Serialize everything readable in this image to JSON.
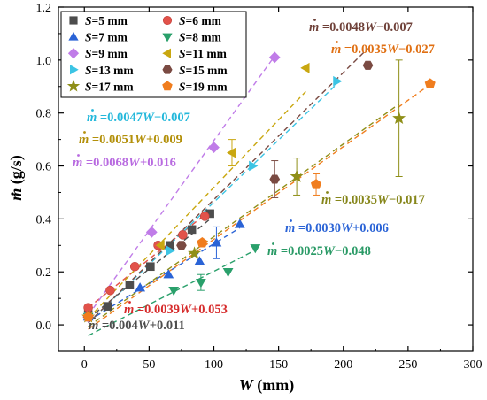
{
  "chart_data": {
    "type": "scatter",
    "xlabel_symbol": "W",
    "xlabel_unit": "(mm)",
    "ylabel_symbol": "m",
    "ylabel_unit": "(g/s)",
    "xlim": [
      -20,
      300
    ],
    "ylim": [
      -0.1,
      1.2
    ],
    "xticks": [
      0,
      50,
      100,
      150,
      200,
      250,
      300
    ],
    "yticks": [
      0.0,
      0.2,
      0.4,
      0.6,
      0.8,
      1.0,
      1.2
    ],
    "grid": false,
    "legend_position": "top-left",
    "series": [
      {
        "name": "S=5 mm",
        "label_prefix": "S",
        "label_suffix": "=5 mm",
        "marker": "square",
        "color": "#4d4d4d",
        "x": [
          3,
          18,
          35,
          51,
          66,
          83,
          97
        ],
        "y": [
          0.04,
          0.07,
          0.15,
          0.22,
          0.3,
          0.36,
          0.42
        ],
        "fit": {
          "slope": 0.004,
          "intercept": 0.011,
          "label": "=0.004W+0.011",
          "color": "#4d4d4d"
        }
      },
      {
        "name": "S=6 mm",
        "label_prefix": "S",
        "label_suffix": "=6 mm",
        "marker": "circle",
        "color": "#e2524a",
        "x": [
          3,
          20,
          39,
          57,
          76,
          93
        ],
        "y": [
          0.065,
          0.13,
          0.22,
          0.3,
          0.34,
          0.41
        ],
        "fit": {
          "slope": 0.0039,
          "intercept": 0.053,
          "label": "=0.0039W+0.053",
          "color": "#d62b2b"
        }
      },
      {
        "name": "S=7 mm",
        "label_prefix": "S",
        "label_suffix": "=7 mm",
        "marker": "triangle-up",
        "color": "#2a63d6",
        "x": [
          3,
          43,
          65,
          89,
          102,
          120
        ],
        "y": [
          0.03,
          0.14,
          0.19,
          0.24,
          0.31,
          0.38
        ],
        "yerr": [
          0,
          0,
          0,
          0,
          0.06,
          0
        ],
        "fit": {
          "slope": 0.003,
          "intercept": 0.006,
          "label": "=0.0030W+0.006",
          "color": "#2a63d6"
        }
      },
      {
        "name": "S=8 mm",
        "label_prefix": "S",
        "label_suffix": "=8 mm",
        "marker": "triangle-down",
        "color": "#2aa06b",
        "x": [
          3,
          69,
          90,
          111,
          132
        ],
        "y": [
          0.03,
          0.13,
          0.16,
          0.2,
          0.29
        ],
        "yerr": [
          0,
          0,
          0.03,
          0,
          0
        ],
        "fit": {
          "slope": 0.0025,
          "intercept": -0.048,
          "label": "=0.0025W−0.048",
          "color": "#2a9a66"
        }
      },
      {
        "name": "S=9 mm",
        "label_prefix": "S",
        "label_suffix": "=9 mm",
        "marker": "diamond",
        "color": "#c07ce8",
        "x": [
          3,
          52,
          100,
          147
        ],
        "y": [
          0.03,
          0.35,
          0.67,
          1.01
        ],
        "fit": {
          "slope": 0.0068,
          "intercept": 0.016,
          "label": "=0.0068W+0.016",
          "color": "#b86ae0"
        }
      },
      {
        "name": "S=11 mm",
        "label_prefix": "S",
        "label_suffix": "=11 mm",
        "marker": "triangle-left",
        "color": "#c9a710",
        "x": [
          3,
          59,
          114,
          171
        ],
        "y": [
          0.03,
          0.3,
          0.65,
          0.97
        ],
        "yerr": [
          0,
          0,
          0.05,
          0
        ],
        "fit": {
          "slope": 0.0051,
          "intercept": 0.009,
          "label": "=0.0051W+0.009",
          "color": "#b3900a"
        }
      },
      {
        "name": "S=13 mm",
        "label_prefix": "S",
        "label_suffix": "=13 mm",
        "marker": "triangle-right",
        "color": "#3cc4e4",
        "x": [
          3,
          66,
          130,
          195
        ],
        "y": [
          0.03,
          0.28,
          0.6,
          0.92
        ],
        "fit": {
          "slope": 0.0047,
          "intercept": -0.007,
          "label": "=0.0047W−0.007",
          "color": "#23b8db"
        }
      },
      {
        "name": "S=15 mm",
        "label_prefix": "S",
        "label_suffix": "=15 mm",
        "marker": "hexagon",
        "color": "#7a4a42",
        "x": [
          3,
          75,
          147,
          219
        ],
        "y": [
          0.03,
          0.3,
          0.55,
          0.98
        ],
        "yerr": [
          0,
          0,
          0.07,
          0
        ],
        "fit": {
          "slope": 0.0048,
          "intercept": -0.007,
          "label": "=0.0048W−0.007",
          "color": "#6e4038"
        }
      },
      {
        "name": "S=17 mm",
        "label_prefix": "S",
        "label_suffix": "=17 mm",
        "marker": "star",
        "color": "#8f8f18",
        "x": [
          3,
          85,
          164,
          243
        ],
        "y": [
          0.03,
          0.27,
          0.56,
          0.78
        ],
        "yerr": [
          0,
          0,
          0.07,
          0.22
        ],
        "fit": {
          "slope": 0.0035,
          "intercept": -0.017,
          "label": "=0.0035W−0.017",
          "color": "#86861a"
        }
      },
      {
        "name": "S=19 mm",
        "label_prefix": "S",
        "label_suffix": "=19 mm",
        "marker": "pentagon",
        "color": "#f07d1e",
        "x": [
          3,
          91,
          179,
          267
        ],
        "y": [
          0.03,
          0.31,
          0.53,
          0.91
        ],
        "yerr": [
          0,
          0,
          0.04,
          0
        ],
        "fit": {
          "slope": 0.0035,
          "intercept": -0.027,
          "label": "=0.0035W−0.027",
          "color": "#e06f12"
        }
      }
    ]
  }
}
